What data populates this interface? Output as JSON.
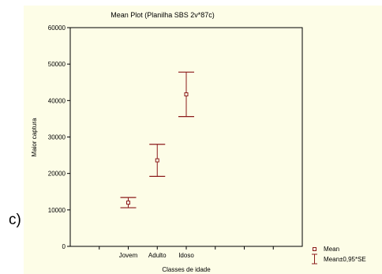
{
  "panel_label": "c)",
  "colors": {
    "background": "#fdfde7",
    "series": "#8b1a1a",
    "plot_border": "#000000"
  },
  "chart_data": {
    "type": "scatter",
    "title": "Mean Plot (Planilha SBS 2v*87c)",
    "xlabel": "Classes de idade",
    "ylabel": "Maior captura",
    "categories": [
      "Jovem",
      "Adulto",
      "Idoso"
    ],
    "ylim": [
      0,
      60000
    ],
    "yticks": [
      0,
      10000,
      20000,
      30000,
      40000,
      50000,
      60000
    ],
    "grid": false,
    "legend_position": "bottom-right",
    "series": [
      {
        "name": "Mean",
        "values": [
          12000,
          23600,
          41700
        ],
        "lower": [
          10600,
          19200,
          35600
        ],
        "upper": [
          13400,
          28000,
          47800
        ]
      }
    ],
    "legend": [
      "Mean",
      "Mean±0,95*SE"
    ]
  }
}
